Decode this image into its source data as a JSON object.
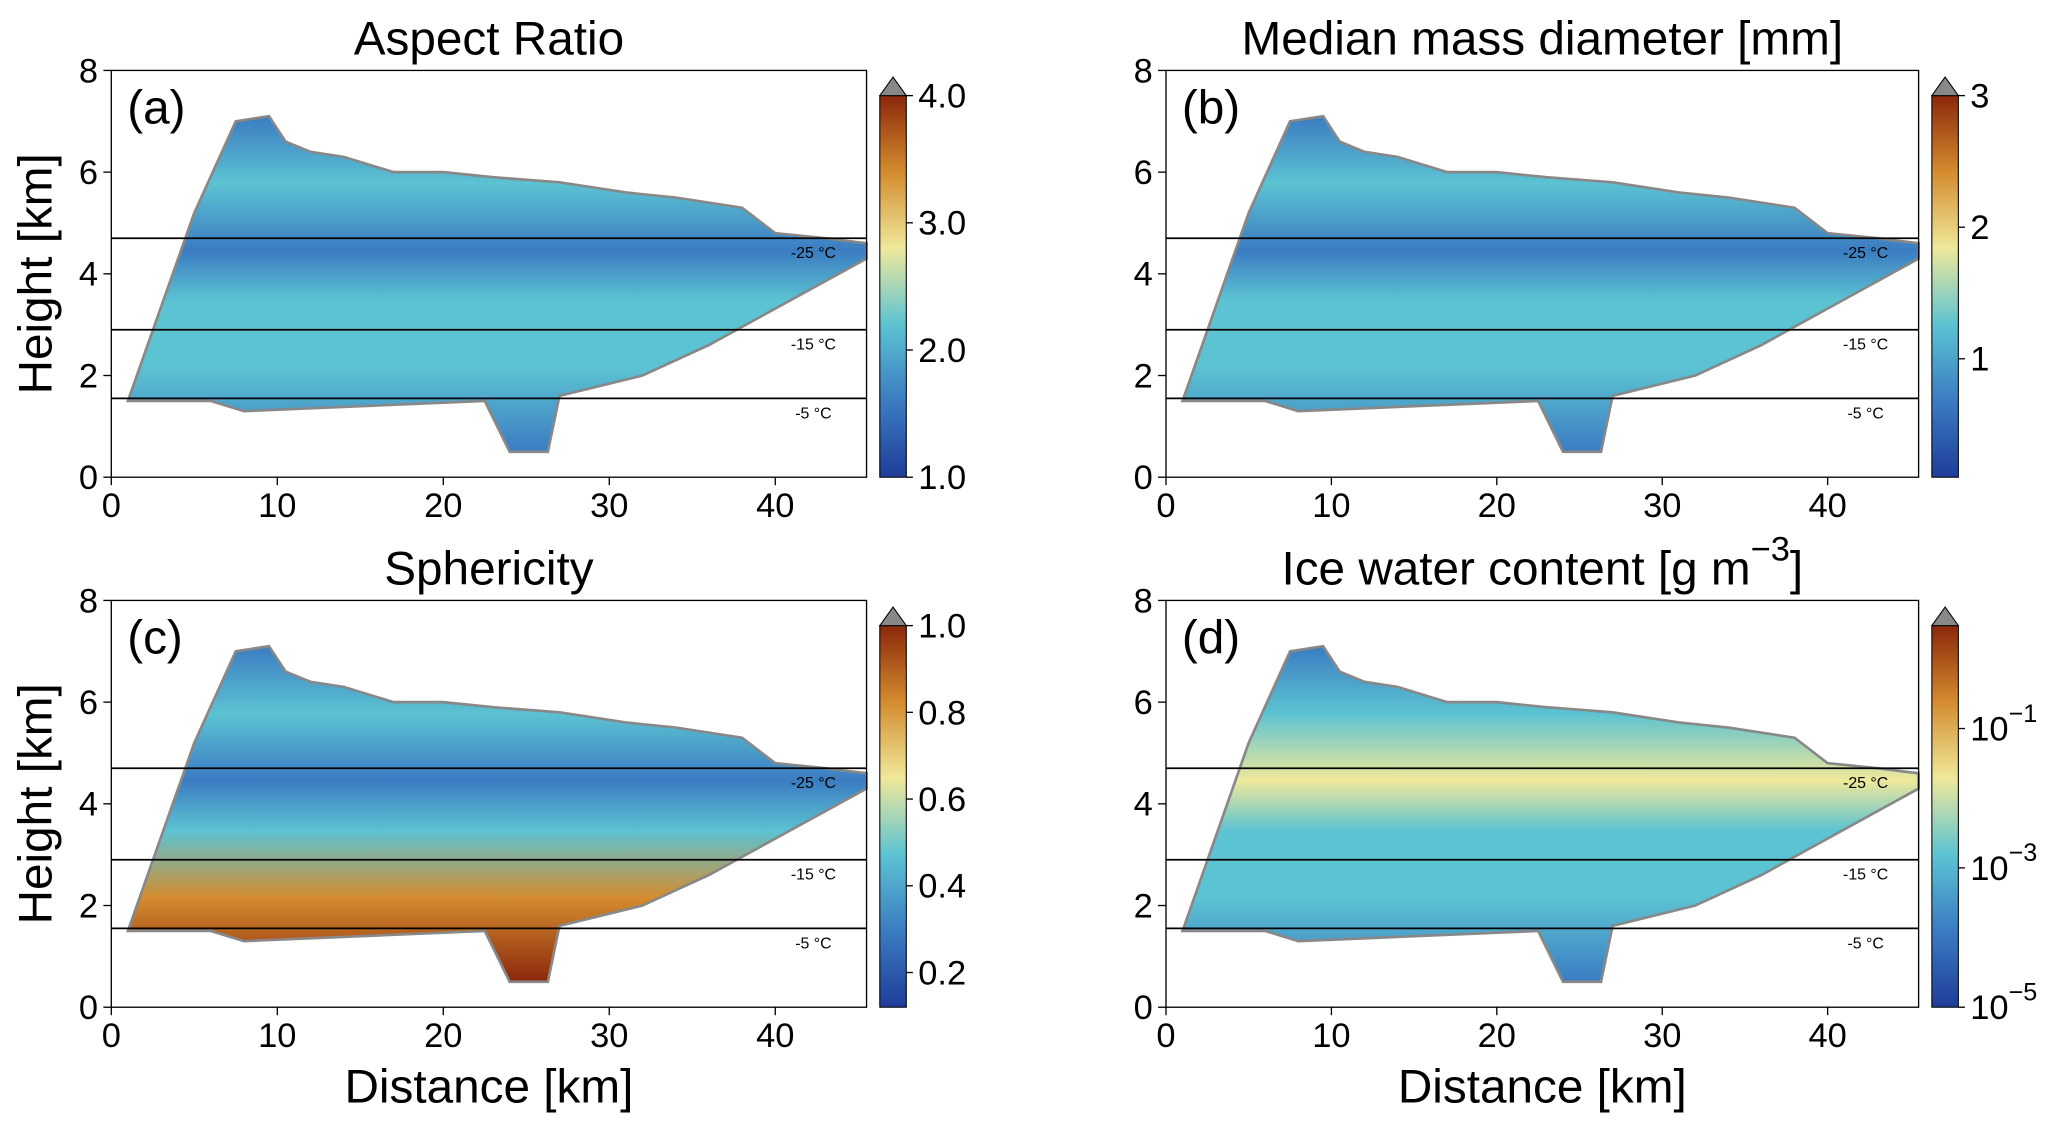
{
  "chart_data": [
    {
      "type": "heatmap",
      "panel_label": "(a)",
      "title": "Aspect Ratio",
      "ylabel": "Height [km]",
      "xlim": [
        0,
        45.5
      ],
      "ylim": [
        0,
        8
      ],
      "xticks": [
        0,
        10,
        20,
        30,
        40
      ],
      "yticks": [
        0,
        2,
        4,
        6,
        8
      ],
      "isotherms": [
        {
          "height": 4.7,
          "label": "-25 °C"
        },
        {
          "height": 2.9,
          "label": "-15 °C"
        },
        {
          "height": 1.55,
          "label": "-5 °C"
        }
      ],
      "colorbar": {
        "lim": [
          1,
          4
        ],
        "log": false,
        "extend_color": "#888888",
        "ticks": [
          {
            "value": 1,
            "label": "1.0"
          },
          {
            "value": 2,
            "label": "2.0"
          },
          {
            "value": 3,
            "label": "3.0"
          },
          {
            "value": 4,
            "label": "4.0"
          }
        ]
      },
      "colormap": [
        "#1f3d99",
        "#3b7cc2",
        "#5cc3d2",
        "#efe89a",
        "#d48c2e",
        "#8a270b"
      ]
    },
    {
      "type": "heatmap",
      "panel_label": "(b)",
      "title": "Median mass diameter [mm]",
      "xlim": [
        0,
        45.5
      ],
      "ylim": [
        0,
        8
      ],
      "xticks": [
        0,
        10,
        20,
        30,
        40
      ],
      "yticks": [
        0,
        2,
        4,
        6,
        8
      ],
      "isotherms": [
        {
          "height": 4.7,
          "label": "-25 °C"
        },
        {
          "height": 2.9,
          "label": "-15 °C"
        },
        {
          "height": 1.55,
          "label": "-5 °C"
        }
      ],
      "colorbar": {
        "lim": [
          0.1,
          3
        ],
        "log": false,
        "extend_color": "#888888",
        "ticks": [
          1,
          2,
          3
        ]
      },
      "colormap": [
        "#1f3d99",
        "#3b7cc2",
        "#5cc3d2",
        "#efe89a",
        "#d48c2e",
        "#8a270b"
      ]
    },
    {
      "type": "heatmap",
      "panel_label": "(c)",
      "title": "Sphericity",
      "ylabel": "Height [km]",
      "xlabel": "Distance [km]",
      "xlim": [
        0,
        45.5
      ],
      "ylim": [
        0,
        8
      ],
      "xticks": [
        0,
        10,
        20,
        30,
        40
      ],
      "yticks": [
        0,
        2,
        4,
        6,
        8
      ],
      "isotherms": [
        {
          "height": 4.7,
          "label": "-25 °C"
        },
        {
          "height": 2.9,
          "label": "-15 °C"
        },
        {
          "height": 1.55,
          "label": "-5 °C"
        }
      ],
      "colorbar": {
        "lim": [
          0.12,
          1
        ],
        "log": false,
        "extend_color": "#888888",
        "ticks": [
          0.2,
          0.4,
          0.6,
          0.8,
          {
            "value": 1,
            "label": "1.0"
          }
        ]
      },
      "colormap": [
        "#1f3d99",
        "#3b7cc2",
        "#5cc3d2",
        "#efe89a",
        "#d48c2e",
        "#8a270b"
      ]
    },
    {
      "type": "heatmap",
      "panel_label": "(d)",
      "title": "Ice water content [g m",
      "title_exponent": "−3",
      "title_end": "]",
      "xlabel": "Distance [km]",
      "xlim": [
        0,
        45.5
      ],
      "ylim": [
        0,
        8
      ],
      "xticks": [
        0,
        10,
        20,
        30,
        40
      ],
      "yticks": [
        0,
        2,
        4,
        6,
        8
      ],
      "isotherms": [
        {
          "height": 4.7,
          "label": "-25 °C"
        },
        {
          "height": 2.9,
          "label": "-15 °C"
        },
        {
          "height": 1.55,
          "label": "-5 °C"
        }
      ],
      "colorbar": {
        "lim": [
          1e-05,
          3
        ],
        "log": true,
        "extend_color": "#888888",
        "ticks": [
          {
            "value": 1e-05,
            "label": "10",
            "exponent": "−5"
          },
          {
            "value": 0.001,
            "label": "10",
            "exponent": "−3"
          },
          {
            "value": 0.1,
            "label": "10",
            "exponent": "−1"
          }
        ]
      },
      "colormap": [
        "#1f3d99",
        "#3b7cc2",
        "#5cc3d2",
        "#efe89a",
        "#d48c2e",
        "#8a270b"
      ]
    }
  ]
}
